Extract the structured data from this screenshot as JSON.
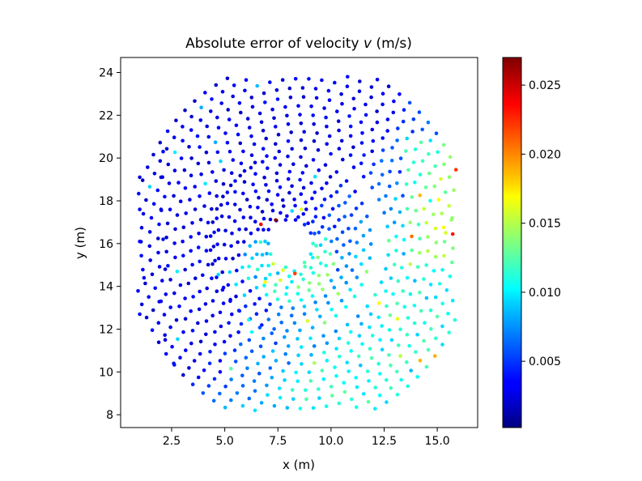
{
  "chart_data": {
    "type": "scatter",
    "title_prefix": "Absolute error of velocity ",
    "title_var": "v",
    "title_suffix": " (m/s)",
    "xlabel": "x (m)",
    "ylabel": "y (m)",
    "xlim": [
      0.1,
      16.9
    ],
    "ylim": [
      7.4,
      24.7
    ],
    "xticks": [
      2.5,
      5.0,
      7.5,
      10.0,
      12.5,
      15.0
    ],
    "xtick_labels": [
      "2.5",
      "5.0",
      "7.5",
      "10.0",
      "12.5",
      "15.0"
    ],
    "yticks": [
      8,
      10,
      12,
      14,
      16,
      18,
      20,
      22,
      24
    ],
    "ytick_labels": [
      "8",
      "10",
      "12",
      "14",
      "16",
      "18",
      "20",
      "22",
      "24"
    ],
    "colorbar": {
      "colormap": "jet",
      "range": [
        0.0002,
        0.027
      ],
      "ticks": [
        0.005,
        0.01,
        0.015,
        0.02,
        0.025
      ],
      "tick_labels": [
        "0.005",
        "0.010",
        "0.015",
        "0.020",
        "0.025"
      ]
    },
    "obstacle": {
      "shape": "ellipse",
      "center": [
        7.95,
        15.95
      ],
      "semi_axes": [
        0.55,
        1.05
      ],
      "rotation_deg": 30
    },
    "field_model": {
      "description_of_point_cloud": "approx. 900 points arranged in spiral rings around an elliptical obstacle",
      "domain_center": [
        8.5,
        16.0
      ],
      "domain_radius": 7.6
    },
    "points": []
  }
}
